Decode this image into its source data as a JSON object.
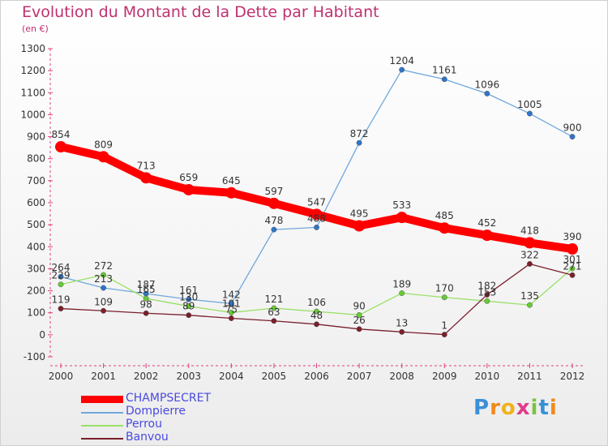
{
  "title": "Evolution du Montant de la Dette par Habitant",
  "subtitle": "(en €)",
  "logo": "Proxiti",
  "chart_data": {
    "type": "line",
    "x": [
      "2000",
      "2001",
      "2002",
      "2003",
      "2004",
      "2005",
      "2006",
      "2007",
      "2008",
      "2009",
      "2010",
      "2011",
      "2012"
    ],
    "ylim": [
      -100,
      1300
    ],
    "yticks": [
      -100,
      0,
      100,
      200,
      300,
      400,
      500,
      600,
      700,
      800,
      900,
      1000,
      1100,
      1200,
      1300
    ],
    "grid": false,
    "legend_position": "bottom-left",
    "series": [
      {
        "name": "CHAMPSECRET",
        "color": "#ff0000",
        "values": [
          854,
          809,
          713,
          659,
          645,
          597,
          547,
          495,
          533,
          485,
          452,
          418,
          390
        ]
      },
      {
        "name": "Dompierre",
        "color": "#6fa8dc",
        "values": [
          264,
          213,
          187,
          161,
          142,
          478,
          488,
          872,
          1204,
          1161,
          1096,
          1005,
          900
        ]
      },
      {
        "name": "Perrou",
        "color": "#99e066",
        "values": [
          229,
          272,
          165,
          130,
          101,
          121,
          106,
          90,
          189,
          170,
          153,
          135,
          301
        ]
      },
      {
        "name": "Banvou",
        "color": "#7a1f2b",
        "values": [
          119,
          109,
          98,
          89,
          75,
          63,
          48,
          26,
          13,
          1,
          182,
          322,
          271
        ]
      }
    ],
    "point_colors": [
      "#ff0000",
      "#2e75c9",
      "#66cc33",
      "#7a1f2b"
    ]
  }
}
